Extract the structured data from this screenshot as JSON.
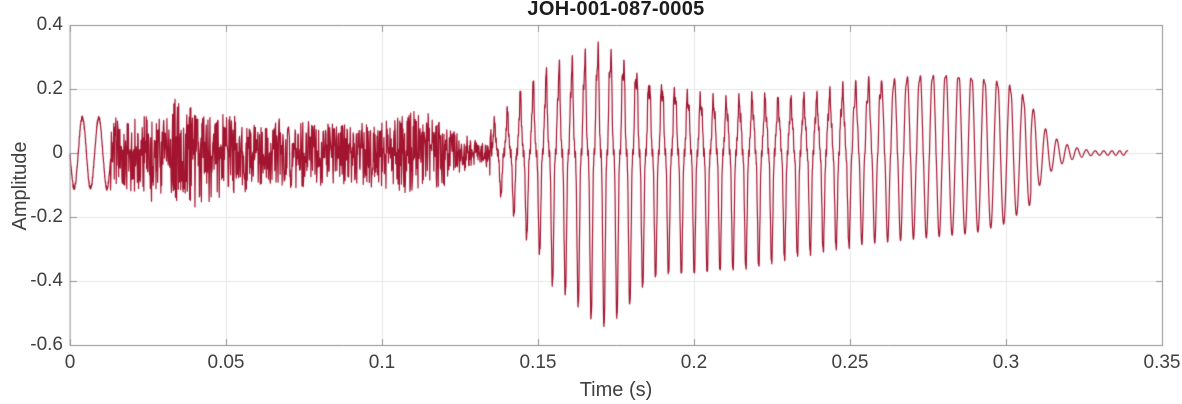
{
  "page": {
    "background": "#ffffff"
  },
  "chart_data": {
    "type": "line",
    "title": "JOH-001-087-0005",
    "xlabel": "Time (s)",
    "ylabel": "Amplitude",
    "xlim": [
      0,
      0.35
    ],
    "ylim": [
      -0.6,
      0.4
    ],
    "xticks": [
      0,
      0.05,
      0.1,
      0.15,
      0.2,
      0.25,
      0.3,
      0.35
    ],
    "xtick_labels": [
      "0",
      "0.05",
      "0.1",
      "0.15",
      "0.2",
      "0.25",
      "0.3",
      "0.35"
    ],
    "yticks": [
      -0.6,
      -0.4,
      -0.2,
      0,
      0.2,
      0.4
    ],
    "ytick_labels": [
      "-0.6",
      "-0.4",
      "-0.2",
      "0",
      "0.2",
      "0.4"
    ],
    "grid": true,
    "legend": null,
    "line_color": "#A2142F",
    "axis_color": "#8f8f8f",
    "grid_color": "#e7e7e7",
    "title_color": "#1c1c1c",
    "label_color": "#404040",
    "waveform": {
      "description": "speech waveform: initial low tone, fricative noise band, strong voiced vowel with deep negative pitch pulses, second swell, decaying ring-out",
      "f0_hz": 242,
      "end_time_s": 0.339,
      "segments": [
        {
          "kind": "tone",
          "t0": 0.0,
          "t1": 0.013,
          "freq": 190,
          "amp": 0.11
        },
        {
          "kind": "noise",
          "t0": 0.013,
          "t1": 0.135
        },
        {
          "kind": "voiced",
          "t0": 0.135,
          "t1": 0.308
        },
        {
          "kind": "decay",
          "t0": 0.308,
          "t1": 0.339,
          "start_amp": 0.155,
          "tau": 0.0065,
          "end_freq": 420
        }
      ],
      "envelope": {
        "t": [
          0.013,
          0.02,
          0.03,
          0.035,
          0.04,
          0.05,
          0.06,
          0.07,
          0.08,
          0.09,
          0.1,
          0.11,
          0.118,
          0.126,
          0.133,
          0.135,
          0.14,
          0.145,
          0.15,
          0.155,
          0.16,
          0.165,
          0.17,
          0.175,
          0.18,
          0.185,
          0.19,
          0.2,
          0.21,
          0.22,
          0.23,
          0.24,
          0.25,
          0.26,
          0.27,
          0.28,
          0.29,
          0.3,
          0.308
        ],
        "upper": [
          0.11,
          0.11,
          0.12,
          0.19,
          0.13,
          0.12,
          0.1,
          0.1,
          0.1,
          0.09,
          0.1,
          0.13,
          0.12,
          0.06,
          0.03,
          0.08,
          0.12,
          0.18,
          0.21,
          0.25,
          0.26,
          0.29,
          0.32,
          0.3,
          0.27,
          0.22,
          0.21,
          0.17,
          0.15,
          0.16,
          0.15,
          0.16,
          0.19,
          0.22,
          0.24,
          0.25,
          0.24,
          0.22,
          0.16
        ],
        "lower": [
          -0.12,
          -0.12,
          -0.14,
          -0.15,
          -0.17,
          -0.13,
          -0.12,
          -0.11,
          -0.11,
          -0.1,
          -0.11,
          -0.13,
          -0.12,
          -0.06,
          -0.03,
          -0.1,
          -0.15,
          -0.25,
          -0.3,
          -0.42,
          -0.45,
          -0.5,
          -0.55,
          -0.52,
          -0.47,
          -0.4,
          -0.38,
          -0.38,
          -0.37,
          -0.36,
          -0.33,
          -0.31,
          -0.29,
          -0.28,
          -0.27,
          -0.26,
          -0.25,
          -0.22,
          -0.16
        ]
      }
    }
  }
}
